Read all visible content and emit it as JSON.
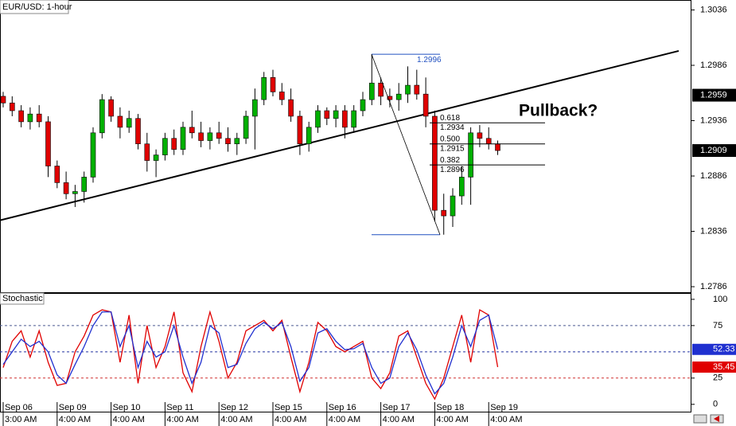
{
  "chart_data": [
    {
      "type": "candlestick",
      "title": "EUR/USD: 1-hour",
      "categories": [
        "Sep 06",
        null,
        null,
        null,
        null,
        null,
        "Sep 09",
        null,
        null,
        null,
        null,
        null,
        "Sep 10",
        null,
        null,
        null,
        null,
        null,
        "Sep 11",
        null,
        null,
        null,
        null,
        null,
        "Sep 12",
        null,
        null,
        null,
        null,
        null,
        "Sep 15",
        null,
        null,
        null,
        null,
        null,
        "Sep 16",
        null,
        null,
        null,
        null,
        null,
        "Sep 17",
        null,
        null,
        null,
        null,
        null,
        "Sep 18",
        null,
        null,
        null,
        null,
        null,
        "Sep 19",
        null
      ],
      "time_labels": [
        "3:00 AM",
        null,
        null,
        null,
        null,
        null,
        "4:00 AM",
        null,
        null,
        null,
        null,
        null,
        "4:00 AM",
        null,
        null,
        null,
        null,
        null,
        "4:00 AM",
        null,
        null,
        null,
        null,
        null,
        "4:00 AM",
        null,
        null,
        null,
        null,
        null,
        "4:00 AM",
        null,
        null,
        null,
        null,
        null,
        "4:00 AM",
        null,
        null,
        null,
        null,
        null,
        "4:00 AM",
        null,
        null,
        null,
        null,
        null,
        "4:00 AM",
        null,
        null,
        null,
        null,
        null,
        "4:00 AM",
        null
      ],
      "open": [
        1.2958,
        1.2952,
        1.2945,
        1.2935,
        1.2942,
        1.2935,
        1.2895,
        1.288,
        1.287,
        1.2872,
        1.2885,
        1.2925,
        1.2955,
        1.294,
        1.293,
        1.2938,
        1.2915,
        1.29,
        1.2905,
        1.292,
        1.291,
        1.293,
        1.2925,
        1.2918,
        1.2925,
        1.292,
        1.2915,
        1.292,
        1.294,
        1.2955,
        1.2975,
        1.2962,
        1.2955,
        1.294,
        1.2915,
        1.293,
        1.2945,
        1.2938,
        1.2945,
        1.293,
        1.2945,
        1.2955,
        1.297,
        1.2958,
        1.2955,
        1.296,
        1.2968,
        1.296,
        1.294,
        1.2855,
        1.285,
        1.2868,
        1.2885,
        1.2925,
        1.292,
        1.2915
      ],
      "high": [
        1.2962,
        1.2958,
        1.295,
        1.2948,
        1.295,
        1.294,
        1.29,
        1.289,
        1.2878,
        1.289,
        1.293,
        1.296,
        1.2958,
        1.2948,
        1.2945,
        1.2942,
        1.2925,
        1.291,
        1.2925,
        1.2928,
        1.2935,
        1.2945,
        1.2935,
        1.293,
        1.2935,
        1.293,
        1.2925,
        1.2945,
        1.2965,
        1.298,
        1.2982,
        1.297,
        1.2965,
        1.2945,
        1.2935,
        1.295,
        1.2948,
        1.295,
        1.295,
        1.295,
        1.2962,
        1.2996,
        1.2975,
        1.2965,
        1.297,
        1.2985,
        1.2982,
        1.2975,
        1.2945,
        1.287,
        1.2875,
        1.2895,
        1.293,
        1.2932,
        1.293,
        1.2918
      ],
      "low": [
        1.2948,
        1.294,
        1.293,
        1.2928,
        1.293,
        1.2885,
        1.2875,
        1.2865,
        1.2858,
        1.2862,
        1.288,
        1.292,
        1.2935,
        1.292,
        1.2925,
        1.291,
        1.289,
        1.2885,
        1.29,
        1.2905,
        1.2905,
        1.292,
        1.2912,
        1.291,
        1.2915,
        1.2908,
        1.2905,
        1.2915,
        1.291,
        1.295,
        1.2958,
        1.295,
        1.2935,
        1.2905,
        1.2908,
        1.2925,
        1.2932,
        1.293,
        1.292,
        1.2925,
        1.294,
        1.295,
        1.295,
        1.2948,
        1.2945,
        1.2952,
        1.2955,
        1.293,
        1.2845,
        1.2833,
        1.284,
        1.286,
        1.286,
        1.2912,
        1.291,
        1.2905
      ],
      "close": [
        1.2952,
        1.2945,
        1.2935,
        1.2942,
        1.2935,
        1.2895,
        1.288,
        1.287,
        1.2872,
        1.2885,
        1.2925,
        1.2955,
        1.294,
        1.293,
        1.2938,
        1.2915,
        1.29,
        1.2905,
        1.292,
        1.291,
        1.293,
        1.2925,
        1.2918,
        1.2925,
        1.292,
        1.2915,
        1.292,
        1.294,
        1.2955,
        1.2975,
        1.2962,
        1.2955,
        1.294,
        1.2915,
        1.293,
        1.2945,
        1.2938,
        1.2945,
        1.293,
        1.2945,
        1.2955,
        1.297,
        1.2958,
        1.2955,
        1.296,
        1.2968,
        1.296,
        1.294,
        1.2855,
        1.285,
        1.2868,
        1.2885,
        1.2925,
        1.292,
        1.2915,
        1.2909
      ],
      "up_color": "#00b000",
      "down_color": "#e00000",
      "ylim": [
        1.2781,
        1.3045
      ],
      "yticks": [
        1.2786,
        1.2836,
        1.2886,
        1.2936,
        1.2986,
        1.3036
      ],
      "price_markers": [
        1.2959,
        1.2909
      ],
      "trendline": [
        1.2846,
        1.2999
      ],
      "fibonacci": {
        "high": 1.2996,
        "low": 1.2833,
        "levels": [
          {
            "ratio": "0.618",
            "price": 1.2934
          },
          {
            "ratio": "0.500",
            "price": 1.2915
          },
          {
            "ratio": "0.382",
            "price": 1.2896
          }
        ]
      },
      "annotation": "Pullback?"
    },
    {
      "type": "line",
      "title": "Stochastic",
      "series": [
        {
          "color": "#e00000",
          "values": [
            35,
            60,
            70,
            45,
            70,
            40,
            18,
            20,
            50,
            65,
            85,
            90,
            88,
            40,
            85,
            20,
            75,
            35,
            55,
            88,
            30,
            12,
            55,
            88,
            60,
            25,
            40,
            70,
            75,
            80,
            70,
            80,
            45,
            12,
            40,
            78,
            70,
            55,
            50,
            55,
            60,
            25,
            15,
            30,
            65,
            70,
            45,
            20,
            5,
            25,
            55,
            85,
            40,
            90,
            85,
            35.45
          ]
        },
        {
          "color": "#2030d0",
          "values": [
            38,
            50,
            62,
            55,
            60,
            50,
            28,
            20,
            38,
            55,
            75,
            88,
            88,
            55,
            75,
            35,
            60,
            45,
            50,
            75,
            45,
            20,
            40,
            75,
            68,
            35,
            38,
            58,
            72,
            78,
            72,
            78,
            55,
            22,
            35,
            68,
            72,
            60,
            52,
            53,
            58,
            35,
            20,
            25,
            55,
            68,
            52,
            28,
            10,
            20,
            45,
            75,
            55,
            80,
            85,
            52.33
          ]
        }
      ],
      "ylim": [
        -7,
        106
      ],
      "yticks": [
        0,
        25,
        75,
        100
      ],
      "level_lines": [
        {
          "value": 75,
          "color": "#4a5a90"
        },
        {
          "value": 50,
          "color": "#2030a0"
        },
        {
          "value": 25,
          "color": "#d03030"
        }
      ]
    }
  ]
}
